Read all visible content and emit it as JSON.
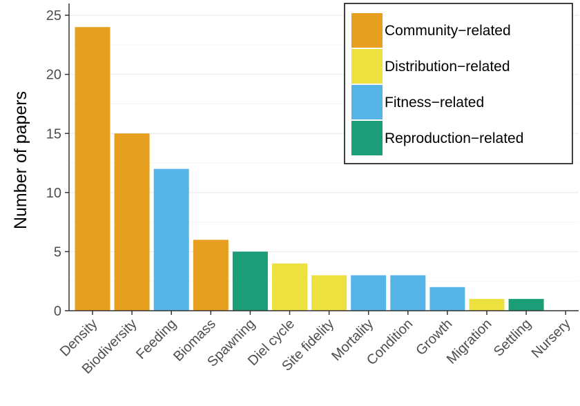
{
  "chart_data": {
    "type": "bar",
    "title": "",
    "xlabel": "",
    "ylabel": "Number of papers",
    "ylim": [
      0,
      26
    ],
    "yticks": [
      0,
      5,
      10,
      15,
      20,
      25
    ],
    "grid": "horizontal",
    "legend_position": "top-right",
    "categories": [
      "Density",
      "Biodiversity",
      "Feeding",
      "Biomass",
      "Spawning",
      "Diel cycle",
      "Site fidelity",
      "Mortality",
      "Condition",
      "Growth",
      "Migration",
      "Settling",
      "Nursery"
    ],
    "values": [
      24,
      15,
      12,
      6,
      5,
      4,
      3,
      3,
      3,
      2,
      1,
      1,
      0
    ],
    "groups": [
      "Community−related",
      "Community−related",
      "Fitness−related",
      "Community−related",
      "Reproduction−related",
      "Distribution−related",
      "Distribution−related",
      "Fitness−related",
      "Fitness−related",
      "Fitness−related",
      "Distribution−related",
      "Reproduction−related",
      "Reproduction−related"
    ],
    "legend": [
      {
        "name": "Community−related",
        "color": "#E69F1F"
      },
      {
        "name": "Distribution−related",
        "color": "#EDE140"
      },
      {
        "name": "Fitness−related",
        "color": "#56B4E9"
      },
      {
        "name": "Reproduction−related",
        "color": "#1B9E77"
      }
    ]
  }
}
